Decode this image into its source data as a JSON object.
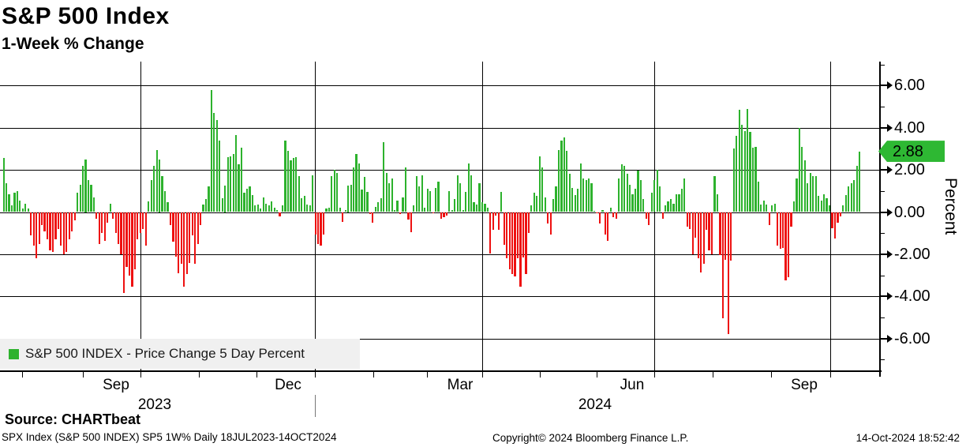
{
  "title": "S&P 500 Index",
  "subtitle": "1-Week % Change",
  "legend": {
    "label": "S&P 500 INDEX - Price Change 5 Day Percent"
  },
  "axis": {
    "y_label": "Percent",
    "y_tick_labels": [
      "6.00",
      "4.00",
      "2.00",
      "0.00",
      "-2.00",
      "-4.00",
      "-6.00"
    ],
    "y_tick_values": [
      6,
      4,
      2,
      0,
      -2,
      -4,
      -6
    ],
    "last_value_label": "2.88",
    "x_month_labels": [
      "Sep",
      "Dec",
      "Mar",
      "Jun",
      "Sep"
    ],
    "x_year_labels": [
      "2023",
      "2024"
    ]
  },
  "footer": {
    "source": "Source: CHARTbeat",
    "left": "SPX Index (S&P 500 INDEX) SP5 1W%  Daily 18JUL2023-14OCT2024",
    "center": "Copyright© 2024 Bloomberg Finance L.P.",
    "right": "14-Oct-2024 18:52:42"
  },
  "colors": {
    "positive": "#2db22d",
    "negative": "#ee1111",
    "badge_green": "#2eb833",
    "legend_bg": "#f0f0f0",
    "grid": "#000000"
  },
  "chart_data": {
    "type": "bar",
    "title": "S&P 500 Index 1-Week % Change",
    "ylabel": "Percent",
    "ylim": [
      -7.3,
      7.1
    ],
    "grid": true,
    "date_range": "18JUL2023-14OCT2024",
    "frequency": "Daily",
    "last_value": 2.88,
    "quarter_gridline_months": [
      "Oct 2023",
      "Jan 2024",
      "Apr 2024",
      "Jul 2024",
      "Oct 2024"
    ],
    "values": [
      2.55,
      1.35,
      0.85,
      0.3,
      0.9,
      1.0,
      0.55,
      0.15,
      0.4,
      0.15,
      -1.1,
      -1.6,
      -2.2,
      -1.5,
      -0.6,
      -0.9,
      -1.3,
      -1.8,
      -1.9,
      -1.3,
      -0.8,
      -1.6,
      -2.0,
      -1.9,
      -1.3,
      -0.9,
      -0.4,
      0.9,
      1.3,
      2.2,
      2.5,
      1.5,
      1.3,
      0.7,
      -0.3,
      -1.5,
      -1.0,
      -1.35,
      -0.5,
      0.4,
      -0.3,
      -1.0,
      -1.5,
      -2.0,
      -3.85,
      -2.6,
      -3.0,
      -3.55,
      -2.7,
      -1.3,
      -1.0,
      -0.8,
      -1.6,
      0.5,
      1.5,
      2.2,
      2.95,
      2.5,
      1.7,
      1.0,
      0.45,
      -0.6,
      -1.4,
      -2.1,
      -2.9,
      -2.45,
      -3.55,
      -2.95,
      -2.4,
      -1.1,
      -2.45,
      -1.5,
      -0.6,
      0.35,
      0.6,
      1.2,
      5.8,
      4.7,
      4.35,
      3.4,
      0.65,
      1.25,
      2.6,
      2.65,
      2.75,
      3.65,
      2.25,
      3.05,
      0.9,
      1.1,
      1.2,
      0.8,
      0.3,
      0.35,
      0.15,
      0.7,
      0.4,
      0.3,
      0.5,
      0.2,
      0.1,
      -0.2,
      0.3,
      3.4,
      2.9,
      2.45,
      2.55,
      2.6,
      1.7,
      0.65,
      0.75,
      0.35,
      0.3,
      1.75,
      -1.05,
      -1.5,
      -1.6,
      -1.05,
      0.15,
      0.2,
      1.7,
      2.0,
      1.85,
      0.2,
      -0.45,
      0.1,
      1.25,
      1.3,
      2.1,
      2.75,
      2.3,
      1.05,
      1.65,
      0.95,
      -0.1,
      -0.5,
      0.25,
      0.45,
      0.65,
      3.3,
      1.85,
      1.35,
      1.6,
      0.1,
      0.55,
      -0.1,
      0.7,
      2.1,
      -0.35,
      -0.95,
      0.3,
      1.7,
      1.2,
      1.75,
      0.2,
      1.1,
      1.0,
      -0.05,
      1.15,
      1.45,
      -0.3,
      -0.25,
      -0.15,
      1.0,
      0.1,
      0.6,
      1.75,
      1.35,
      0.1,
      0.95,
      2.3,
      1.75,
      0.45,
      0.35,
      1.35,
      0.45,
      0.4,
      0.2,
      -1.95,
      -0.85,
      -0.15,
      -0.85,
      0.95,
      -1.55,
      -2.2,
      -2.7,
      -2.95,
      -3.05,
      -2.2,
      -3.55,
      -2.15,
      -2.95,
      -1.0,
      0.3,
      0.9,
      0.75,
      2.65,
      2.1,
      0.7,
      -0.55,
      -1.05,
      0.6,
      1.2,
      2.95,
      3.4,
      3.55,
      2.9,
      1.8,
      1.15,
      0.8,
      1.1,
      2.3,
      1.6,
      1.5,
      1.6,
      1.35,
      0.05,
      -0.05,
      -0.55,
      0.1,
      -1.05,
      -1.35,
      0.2,
      -0.25,
      -0.3,
      1.6,
      2.25,
      2.2,
      1.8,
      1.3,
      0.85,
      1.1,
      1.95,
      1.5,
      0.6,
      -0.3,
      -0.6,
      0.9,
      1.5,
      2.0,
      1.2,
      -0.3,
      0.3,
      0.5,
      0.6,
      0.4,
      0.85,
      0.85,
      1.1,
      1.6,
      -0.7,
      -0.8,
      -2.0,
      -1.2,
      -2.2,
      -2.85,
      -2.45,
      -0.85,
      -1.8,
      -2.0,
      1.7,
      0.85,
      -2.05,
      -5.05,
      -2.25,
      -5.8,
      -2.3,
      3.0,
      3.6,
      4.85,
      4.15,
      3.85,
      4.9,
      3.8,
      3.05,
      3.1,
      1.45,
      0.35,
      0.55,
      0.35,
      -0.6,
      0.3,
      0.4,
      -1.6,
      -1.75,
      -1.7,
      -3.25,
      -3.1,
      -0.7,
      0.5,
      1.6,
      4.0,
      3.1,
      2.45,
      1.35,
      1.85,
      1.7,
      1.7,
      0.75,
      0.55,
      0.85,
      0.65,
      0.3,
      -0.75,
      -1.25,
      -0.5,
      -0.2,
      0.3,
      0.8,
      1.2,
      1.35,
      1.5,
      2.2,
      2.88
    ]
  }
}
